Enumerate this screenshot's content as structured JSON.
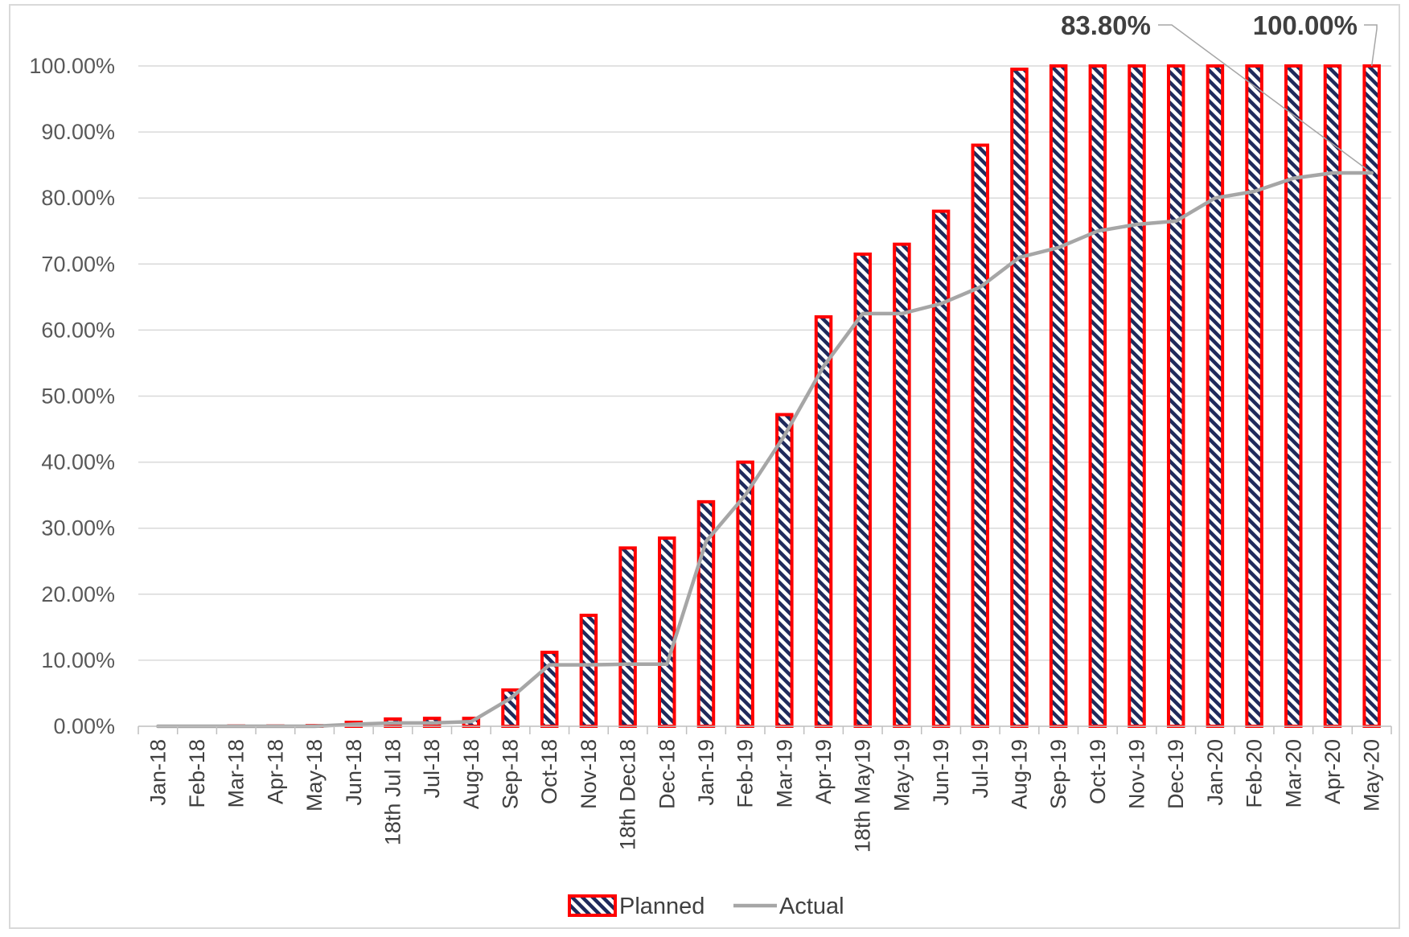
{
  "chart_data": {
    "type": "bar",
    "categories": [
      "Jan-18",
      "Feb-18",
      "Mar-18",
      "Apr-18",
      "May-18",
      "Jun-18",
      "18th Jul 18",
      "Jul-18",
      "Aug-18",
      "Sep-18",
      "Oct-18",
      "Nov-18",
      "18th Dec18",
      "Dec-18",
      "Jan-19",
      "Feb-19",
      "Mar-19",
      "Apr-19",
      "18th May19",
      "May-19",
      "Jun-19",
      "Jul-19",
      "Aug-19",
      "Sep-19",
      "Oct-19",
      "Nov-19",
      "Dec-19",
      "Jan-20",
      "Feb-20",
      "Mar-20",
      "Apr-20",
      "May-20"
    ],
    "series": [
      {
        "name": "Planned",
        "type": "bar",
        "values": [
          0,
          0,
          0.05,
          0.05,
          0.1,
          0.6,
          1.1,
          1.2,
          1.2,
          5.5,
          11.2,
          16.8,
          27.0,
          28.5,
          34.0,
          40.0,
          47.2,
          62.0,
          71.5,
          73.0,
          78.0,
          88.0,
          99.5,
          100,
          100,
          100,
          100,
          100,
          100,
          100,
          100,
          100
        ]
      },
      {
        "name": "Actual",
        "type": "line",
        "values": [
          0,
          0,
          0,
          0,
          0,
          0.3,
          0.5,
          0.5,
          0.7,
          4.2,
          9.3,
          9.3,
          9.4,
          9.4,
          28.0,
          35.0,
          44.0,
          54.5,
          62.5,
          62.5,
          64.0,
          66.5,
          71.0,
          72.5,
          75.0,
          76.0,
          76.5,
          80.0,
          81.0,
          83.0,
          83.8,
          83.8
        ]
      }
    ],
    "ylim": [
      0,
      100
    ],
    "yticks": [
      "0.00%",
      "10.00%",
      "20.00%",
      "30.00%",
      "40.00%",
      "50.00%",
      "60.00%",
      "70.00%",
      "80.00%",
      "90.00%",
      "100.00%"
    ],
    "annotations": [
      {
        "text": "83.80%",
        "series": "Actual",
        "category": "May-20",
        "value": 83.8
      },
      {
        "text": "100.00%",
        "series": "Planned",
        "category": "May-20",
        "value": 100
      }
    ],
    "legend": {
      "position": "bottom",
      "entries": [
        "Planned",
        "Actual"
      ]
    },
    "grid": true,
    "colors": {
      "bar_border": "#ff0000",
      "bar_hatch": "#1f2a5c",
      "line": "#a6a6a6",
      "grid": "#d9d9d9",
      "axis": "#bfbfbf"
    }
  }
}
